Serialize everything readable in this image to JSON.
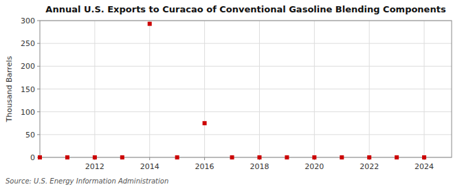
{
  "chart_data": {
    "type": "scatter",
    "title": "Annual U.S. Exports to Curacao of Conventional Gasoline Blending Components",
    "ylabel": "Thousand Barrels",
    "annotations": [
      "Source: U.S. Energy Information Administration"
    ],
    "x": [
      2010,
      2011,
      2012,
      2013,
      2014,
      2015,
      2016,
      2017,
      2018,
      2019,
      2020,
      2021,
      2022,
      2023,
      2024
    ],
    "values": [
      0,
      0,
      0,
      0,
      293,
      0,
      75,
      0,
      0,
      0,
      0,
      0,
      0,
      0,
      0
    ],
    "color": "#cc0000",
    "marker": "square",
    "xlim": [
      2010.0,
      2025.0
    ],
    "xticks": [
      2012,
      2014,
      2016,
      2018,
      2020,
      2022,
      2024
    ],
    "ylim": [
      0,
      300
    ],
    "yticks": [
      0,
      50,
      100,
      150,
      200,
      250,
      300
    ],
    "grid": true
  }
}
